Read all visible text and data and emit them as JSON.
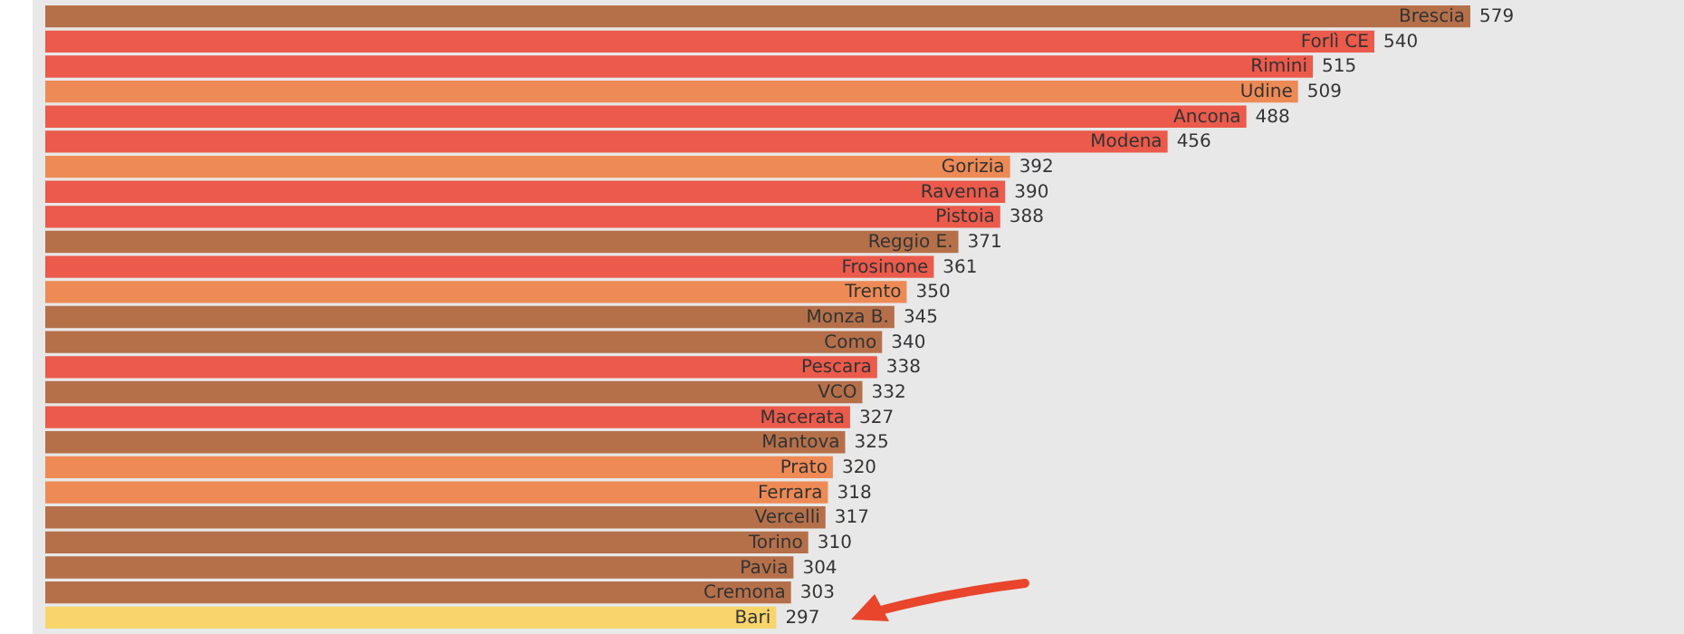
{
  "chart_data": {
    "type": "bar",
    "orientation": "horizontal",
    "data_labels": true,
    "categories": [
      "Brescia",
      "Forlì CE",
      "Rimini",
      "Udine",
      "Ancona",
      "Modena",
      "Gorizia",
      "Ravenna",
      "Pistoia",
      "Reggio E.",
      "Frosinone",
      "Trento",
      "Monza B.",
      "Como",
      "Pescara",
      "VCO",
      "Macerata",
      "Mantova",
      "Prato",
      "Ferrara",
      "Vercelli",
      "Torino",
      "Pavia",
      "Cremona",
      "Bari"
    ],
    "values": [
      579,
      540,
      515,
      509,
      488,
      456,
      392,
      390,
      388,
      371,
      361,
      350,
      345,
      340,
      338,
      332,
      327,
      325,
      320,
      318,
      317,
      310,
      304,
      303,
      297
    ],
    "colors": [
      "#b5704a",
      "#eb5a4b",
      "#eb5a4b",
      "#ee8a55",
      "#eb5a4b",
      "#eb5a4b",
      "#ee8a55",
      "#eb5a4b",
      "#eb5a4b",
      "#b5704a",
      "#eb5a4b",
      "#ee8a55",
      "#b5704a",
      "#b5704a",
      "#eb5a4b",
      "#b5704a",
      "#eb5a4b",
      "#b5704a",
      "#ee8a55",
      "#ee8a55",
      "#b5704a",
      "#b5704a",
      "#b5704a",
      "#b5704a",
      "#f8d46b"
    ]
  }
}
